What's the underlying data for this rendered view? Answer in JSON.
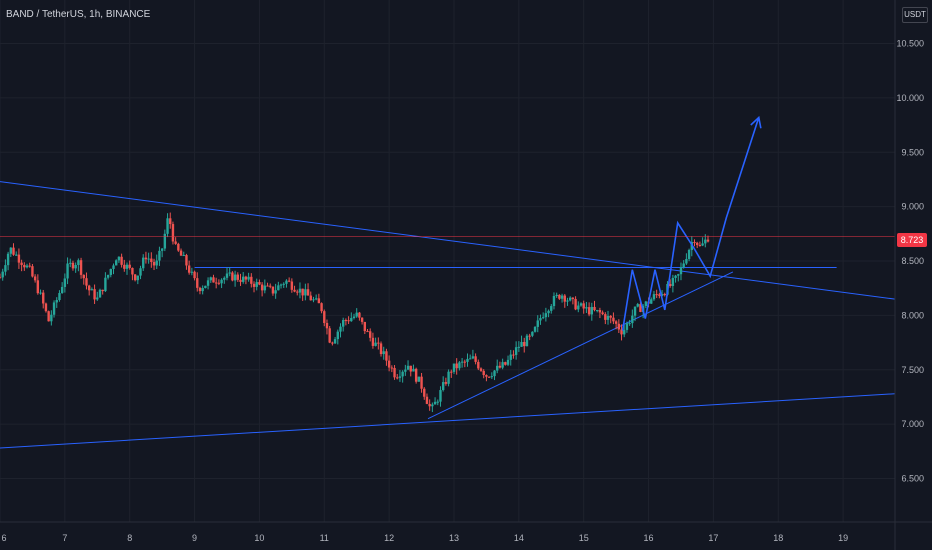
{
  "header": {
    "title": "BAND / TetherUS, 1h, BINANCE"
  },
  "axis": {
    "currency_label": "USDT"
  },
  "colors": {
    "background": "#131722",
    "grid": "#1e222d",
    "bullish": "#26a69a",
    "bearish": "#ef5350",
    "drawing": "#2962ff",
    "last_price_line": "#f23645",
    "axis_text": "#b2b5be"
  },
  "chart_data": {
    "type": "candlestick",
    "title": "BAND / TetherUS, 1h, BINANCE",
    "y_ticks": [
      "10.500",
      "10.000",
      "9.500",
      "9.000",
      "8.500",
      "8.000",
      "7.500",
      "7.000",
      "6.500"
    ],
    "ylim": [
      6.1,
      10.9
    ],
    "x_ticks": [
      "6",
      "7",
      "8",
      "9",
      "10",
      "11",
      "12",
      "13",
      "14",
      "15",
      "16",
      "17",
      "18",
      "19"
    ],
    "x_tick_days": [
      6,
      7,
      8,
      9,
      10,
      11,
      12,
      13,
      14,
      15,
      16,
      17,
      18,
      19
    ],
    "xlim": [
      6.0,
      19.8
    ],
    "last_price": {
      "label": "8.723",
      "value": 8.723
    },
    "grid": true,
    "price_path": [
      [
        6.0,
        8.35
      ],
      [
        6.15,
        8.62
      ],
      [
        6.3,
        8.52
      ],
      [
        6.45,
        8.42
      ],
      [
        6.6,
        8.22
      ],
      [
        6.75,
        7.95
      ],
      [
        6.9,
        8.18
      ],
      [
        7.05,
        8.45
      ],
      [
        7.2,
        8.5
      ],
      [
        7.35,
        8.25
      ],
      [
        7.5,
        8.15
      ],
      [
        7.65,
        8.35
      ],
      [
        7.8,
        8.55
      ],
      [
        7.95,
        8.45
      ],
      [
        8.1,
        8.35
      ],
      [
        8.25,
        8.55
      ],
      [
        8.4,
        8.45
      ],
      [
        8.5,
        8.62
      ],
      [
        8.6,
        8.92
      ],
      [
        8.7,
        8.62
      ],
      [
        8.85,
        8.5
      ],
      [
        9.05,
        8.25
      ],
      [
        9.3,
        8.33
      ],
      [
        9.6,
        8.36
      ],
      [
        9.9,
        8.3
      ],
      [
        10.2,
        8.22
      ],
      [
        10.4,
        8.32
      ],
      [
        10.7,
        8.2
      ],
      [
        10.95,
        8.08
      ],
      [
        11.1,
        7.75
      ],
      [
        11.3,
        7.95
      ],
      [
        11.5,
        8.0
      ],
      [
        11.7,
        7.8
      ],
      [
        11.9,
        7.65
      ],
      [
        12.1,
        7.45
      ],
      [
        12.3,
        7.55
      ],
      [
        12.5,
        7.35
      ],
      [
        12.65,
        7.12
      ],
      [
        12.8,
        7.3
      ],
      [
        12.95,
        7.5
      ],
      [
        13.1,
        7.55
      ],
      [
        13.3,
        7.6
      ],
      [
        13.5,
        7.45
      ],
      [
        13.65,
        7.5
      ],
      [
        13.8,
        7.55
      ],
      [
        14.0,
        7.72
      ],
      [
        14.2,
        7.8
      ],
      [
        14.35,
        8.0
      ],
      [
        14.5,
        8.12
      ],
      [
        14.65,
        8.2
      ],
      [
        14.85,
        8.1
      ],
      [
        15.05,
        8.05
      ],
      [
        15.25,
        8.02
      ],
      [
        15.45,
        7.95
      ],
      [
        15.6,
        7.85
      ],
      [
        15.8,
        8.05
      ],
      [
        15.95,
        8.1
      ],
      [
        16.1,
        8.18
      ],
      [
        16.3,
        8.25
      ],
      [
        16.45,
        8.35
      ],
      [
        16.6,
        8.58
      ],
      [
        16.7,
        8.72
      ],
      [
        16.8,
        8.62
      ],
      [
        16.95,
        8.75
      ]
    ],
    "drawings": {
      "upper_trendline": {
        "points": [
          [
            6.0,
            9.23
          ],
          [
            19.8,
            8.15
          ]
        ]
      },
      "lower_trendline": {
        "points": [
          [
            6.0,
            6.78
          ],
          [
            19.8,
            7.28
          ]
        ]
      },
      "support_uptrend": {
        "points": [
          [
            12.6,
            7.05
          ],
          [
            17.3,
            8.4
          ]
        ]
      },
      "horizontal_level": {
        "points": [
          [
            9.0,
            8.44
          ],
          [
            18.9,
            8.44
          ]
        ]
      },
      "zigzag": {
        "points": [
          [
            15.6,
            7.86
          ],
          [
            15.75,
            8.42
          ],
          [
            15.95,
            7.97
          ],
          [
            16.1,
            8.42
          ],
          [
            16.25,
            8.05
          ],
          [
            16.45,
            8.85
          ],
          [
            16.7,
            8.62
          ],
          [
            16.95,
            8.36
          ],
          [
            17.2,
            8.9
          ],
          [
            17.7,
            9.82
          ]
        ]
      }
    }
  }
}
